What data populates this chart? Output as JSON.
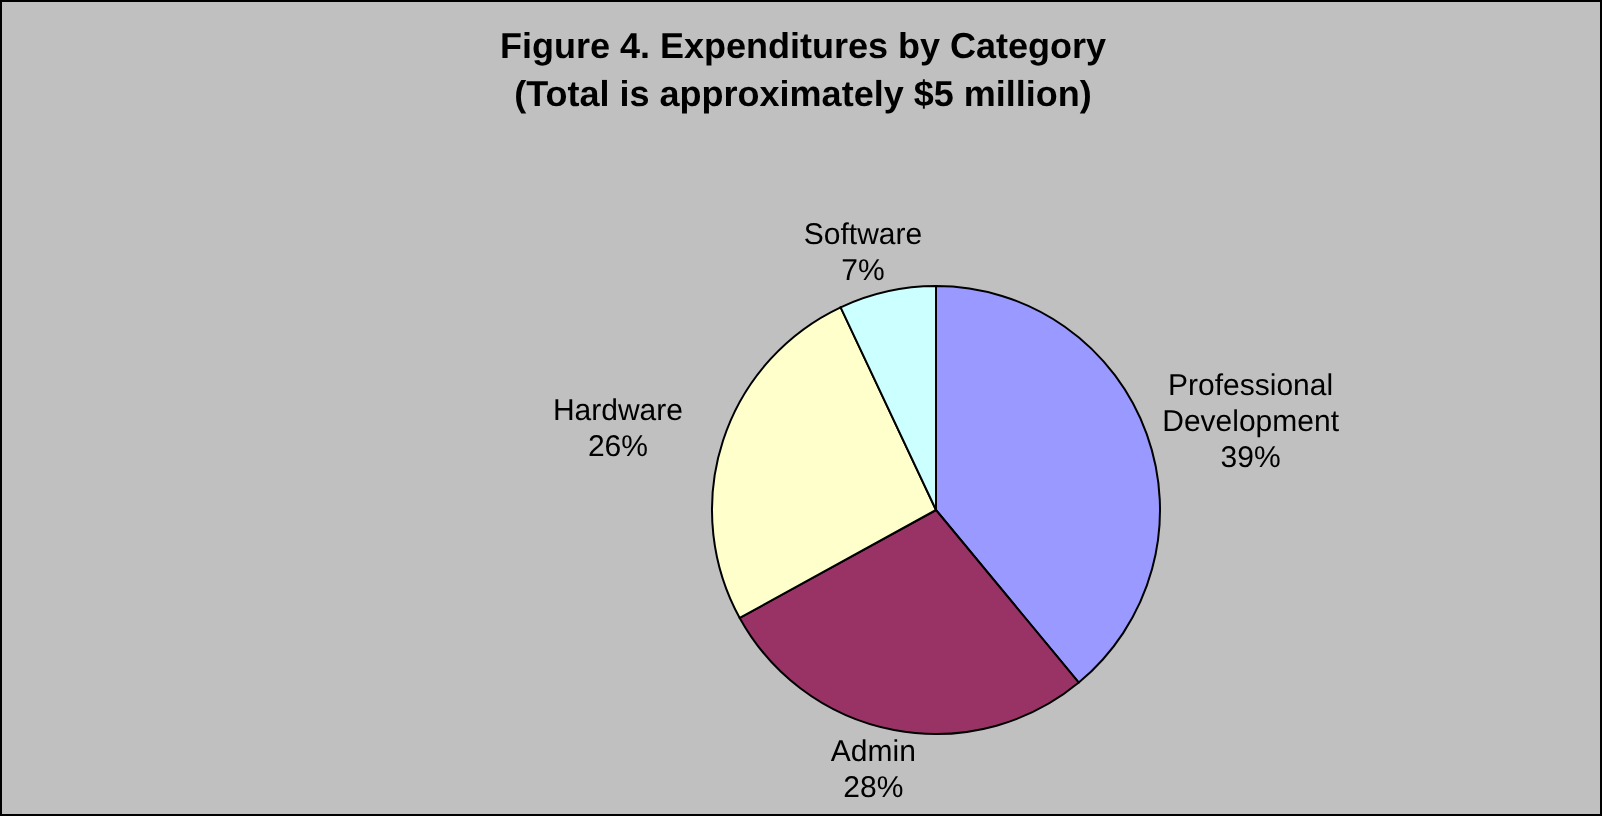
{
  "chart_data": {
    "type": "pie",
    "title": "Figure 4.  Expenditures by Category",
    "subtitle": "(Total is approximately $5 million)",
    "categories": [
      "Professional Development",
      "Admin",
      "Hardware",
      "Software"
    ],
    "values": [
      39,
      28,
      26,
      7
    ],
    "value_labels": [
      "39%",
      "28%",
      "26%",
      "7%"
    ],
    "colors": [
      "#9999ff",
      "#993366",
      "#ffffcc",
      "#ccffff"
    ],
    "legend": false
  }
}
